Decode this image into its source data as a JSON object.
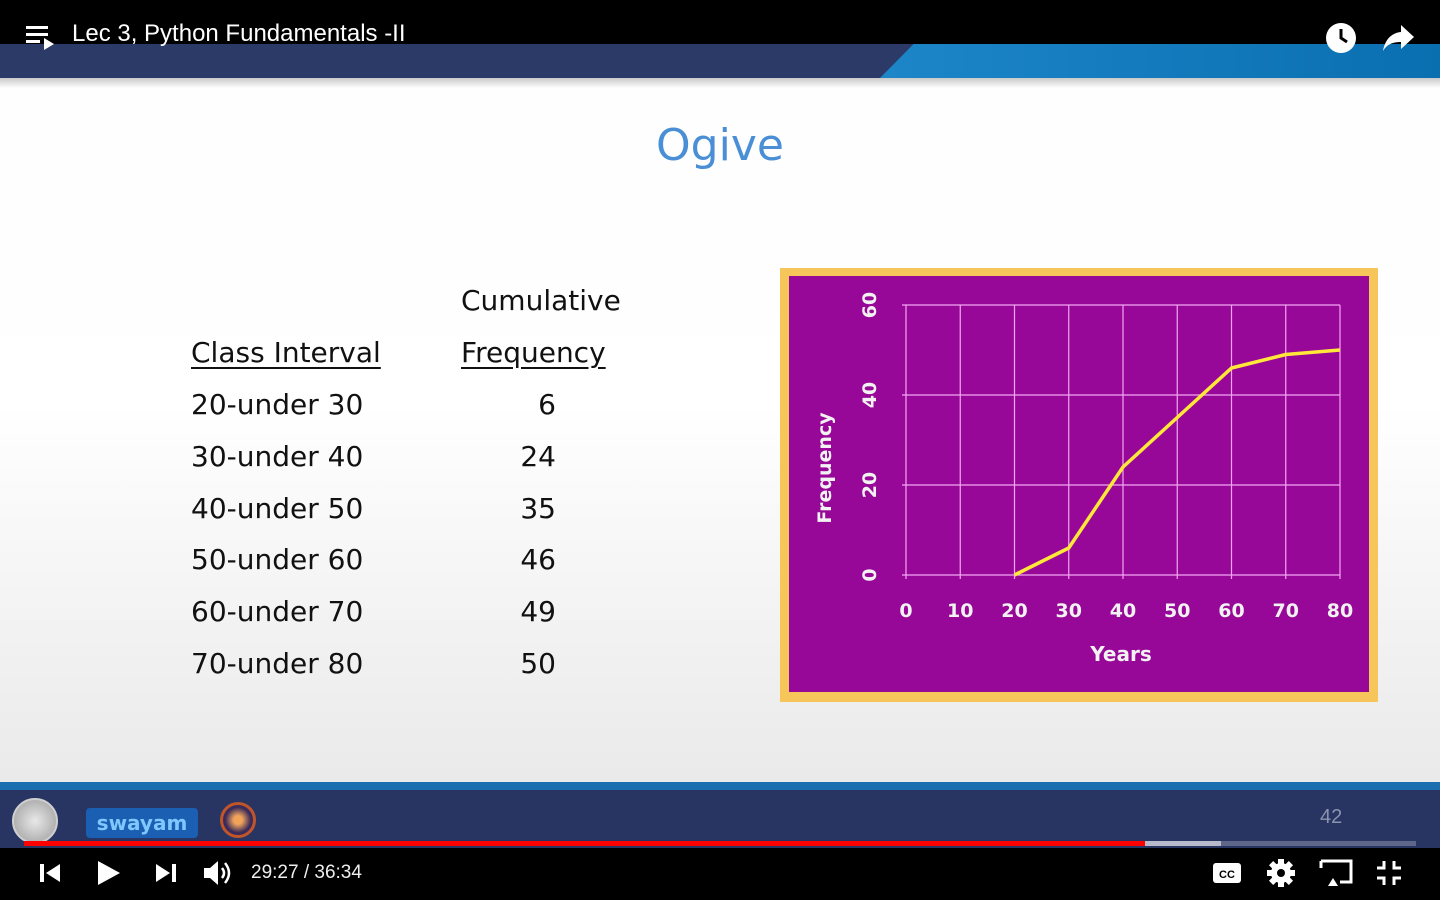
{
  "player": {
    "video_title": "Lec 3, Python Fundamentals -II",
    "current_time": "29:27",
    "duration": "36:34",
    "time_display": "29:27 / 36:34",
    "played_fraction": 0.805,
    "buffered_fraction": 0.86,
    "progress_color": "#ff0000",
    "icons": {
      "playlist": "playlist-icon",
      "watch_later": "clock-icon",
      "share": "share-icon",
      "previous": "skip-previous-icon",
      "play": "play-icon",
      "next": "skip-next-icon",
      "volume": "volume-icon",
      "captions": "cc-icon",
      "settings": "gear-icon",
      "cast": "cast-icon",
      "fullscreen_exit": "fullscreen-exit-icon"
    },
    "captions_label": "CC"
  },
  "slide": {
    "title": "Ogive",
    "title_color": "#4a8fd6",
    "table": {
      "header_line1": "Cumulative",
      "col1_header": "Class Interval",
      "col2_header": "Frequency",
      "rows": [
        {
          "interval": "20-under 30",
          "freq": "6"
        },
        {
          "interval": "30-under 40",
          "freq": "24"
        },
        {
          "interval": "40-under 50",
          "freq": "35"
        },
        {
          "interval": "50-under 60",
          "freq": "46"
        },
        {
          "interval": "60-under 70",
          "freq": "49"
        },
        {
          "interval": "70-under 80",
          "freq": "50"
        }
      ]
    },
    "footer": {
      "logo_text": "swayam",
      "slide_number": "42"
    }
  },
  "chart_data": {
    "type": "line",
    "title": "",
    "xlabel": "Years",
    "ylabel": "Frequency",
    "x_ticks": [
      "0",
      "10",
      "20",
      "30",
      "40",
      "50",
      "60",
      "70",
      "80"
    ],
    "y_ticks": [
      "0",
      "20",
      "40",
      "60"
    ],
    "xlim": [
      0,
      80
    ],
    "ylim": [
      0,
      60
    ],
    "grid": true,
    "background_color": "#980898",
    "frame_color": "#f7c65a",
    "line_color": "#ffe83a",
    "series": [
      {
        "x": [
          20,
          30,
          40,
          50,
          60,
          70,
          80
        ],
        "y": [
          0,
          6,
          24,
          35,
          46,
          49,
          50
        ]
      }
    ]
  }
}
